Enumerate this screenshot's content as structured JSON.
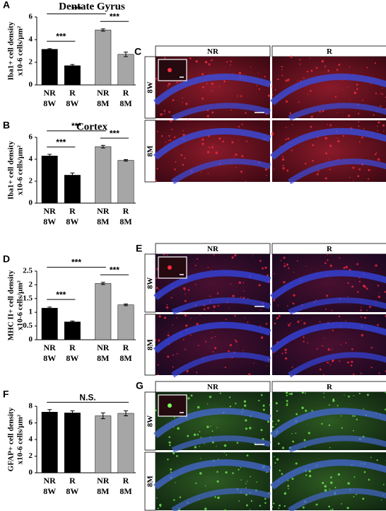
{
  "chart_data": [
    {
      "type": "bar",
      "label": "A",
      "title": "Dentate Gyrus",
      "ylabel": [
        "Iba1+ cell density",
        "x10-6 cells/µm²"
      ],
      "categories": [
        "NR 8W",
        "R 8W",
        "NR 8M",
        "R 8M"
      ],
      "values": [
        3.15,
        1.7,
        4.85,
        2.7
      ],
      "errors": [
        0.05,
        0.1,
        0.1,
        0.2
      ],
      "colors": [
        "#000000",
        "#000000",
        "#a6a6a6",
        "#a6a6a6"
      ],
      "ylim": [
        0,
        6
      ],
      "yticks": [
        0,
        2,
        4,
        6
      ],
      "comparisons": [
        {
          "label": "***",
          "bars": [
            0,
            1
          ]
        },
        {
          "label": "***",
          "bars": [
            2,
            3
          ]
        },
        {
          "label": "***",
          "bars": [
            0,
            2
          ]
        }
      ]
    },
    {
      "type": "bar",
      "label": "B",
      "title": "Cortex",
      "ylabel": [
        "Iba1+ cell density",
        "x10-6 cells/µm²"
      ],
      "categories": [
        "NR 8W",
        "R 8W",
        "NR 8M",
        "R 8M"
      ],
      "values": [
        4.3,
        2.55,
        5.15,
        3.9
      ],
      "errors": [
        0.15,
        0.2,
        0.12,
        0.07
      ],
      "colors": [
        "#000000",
        "#000000",
        "#a6a6a6",
        "#a6a6a6"
      ],
      "ylim": [
        0,
        6
      ],
      "yticks": [
        0,
        2,
        4,
        6
      ],
      "comparisons": [
        {
          "label": "***",
          "bars": [
            0,
            1
          ]
        },
        {
          "label": "***",
          "bars": [
            2,
            3
          ]
        },
        {
          "label": "***",
          "bars": [
            0,
            2
          ]
        }
      ]
    },
    {
      "type": "bar",
      "label": "D",
      "ylabel": [
        "MHC II+ cell density",
        "x10-6 cells/µm²"
      ],
      "categories": [
        "NR 8W",
        "R 8W",
        "NR 8M",
        "R 8M"
      ],
      "values": [
        1.15,
        0.65,
        2.05,
        1.27
      ],
      "errors": [
        0.04,
        0.03,
        0.04,
        0.03
      ],
      "colors": [
        "#000000",
        "#000000",
        "#a6a6a6",
        "#a6a6a6"
      ],
      "ylim": [
        0,
        2.5
      ],
      "yticks": [
        0,
        0.5,
        1,
        1.5,
        2,
        2.5
      ],
      "comparisons": [
        {
          "label": "***",
          "bars": [
            0,
            1
          ]
        },
        {
          "label": "***",
          "bars": [
            2,
            3
          ]
        },
        {
          "label": "***",
          "bars": [
            0,
            2
          ]
        }
      ]
    },
    {
      "type": "bar",
      "label": "F",
      "ylabel": [
        "GFAP+ cell density",
        "x10-6 cells/µm²"
      ],
      "categories": [
        "NR 8W",
        "R 8W",
        "NR 8M",
        "R 8M"
      ],
      "values": [
        7.3,
        7.2,
        6.85,
        7.15
      ],
      "errors": [
        0.3,
        0.25,
        0.35,
        0.3
      ],
      "colors": [
        "#000000",
        "#000000",
        "#a6a6a6",
        "#a6a6a6"
      ],
      "ylim": [
        0,
        8
      ],
      "yticks": [
        0,
        2,
        4,
        6,
        8
      ],
      "comparisons": [
        {
          "label": "N.S.",
          "bars": [
            0,
            3
          ]
        }
      ]
    }
  ],
  "image_panels": [
    {
      "label": "C",
      "columns": [
        "NR",
        "R"
      ],
      "rows": [
        "8W",
        "8M"
      ]
    },
    {
      "label": "E",
      "columns": [
        "NR",
        "R"
      ],
      "rows": [
        "8W",
        "8M"
      ]
    },
    {
      "label": "G",
      "columns": [
        "NR",
        "R"
      ],
      "rows": [
        "8W",
        "8M"
      ]
    }
  ]
}
